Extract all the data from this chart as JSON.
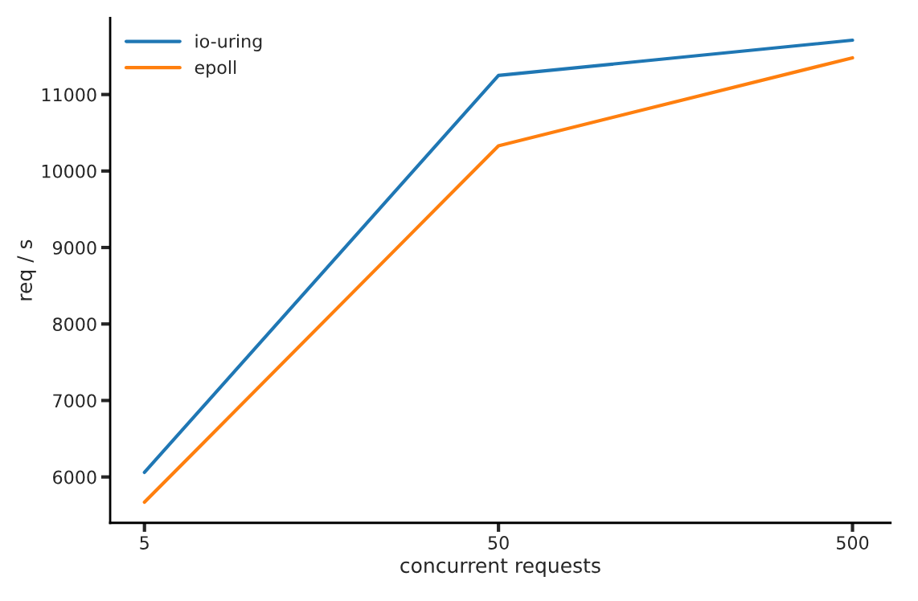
{
  "chart_data": {
    "type": "line",
    "xlabel": "concurrent requests",
    "ylabel": "req / s",
    "log": "x",
    "x": [
      5,
      50,
      500
    ],
    "series": [
      {
        "name": "io-uring",
        "color": "#1f77b4",
        "values": [
          6060,
          11250,
          11710
        ]
      },
      {
        "name": "epoll",
        "color": "#ff7f0e",
        "values": [
          5670,
          10330,
          11480
        ]
      }
    ],
    "xlim": [
      4,
      640
    ],
    "xticks": [
      5,
      50,
      500
    ],
    "ylim": [
      5400,
      12000
    ],
    "yticks": [
      6000,
      7000,
      8000,
      9000,
      10000,
      11000
    ],
    "legend": "top left",
    "grid": false,
    "marker": "none",
    "line_style": "solid"
  }
}
